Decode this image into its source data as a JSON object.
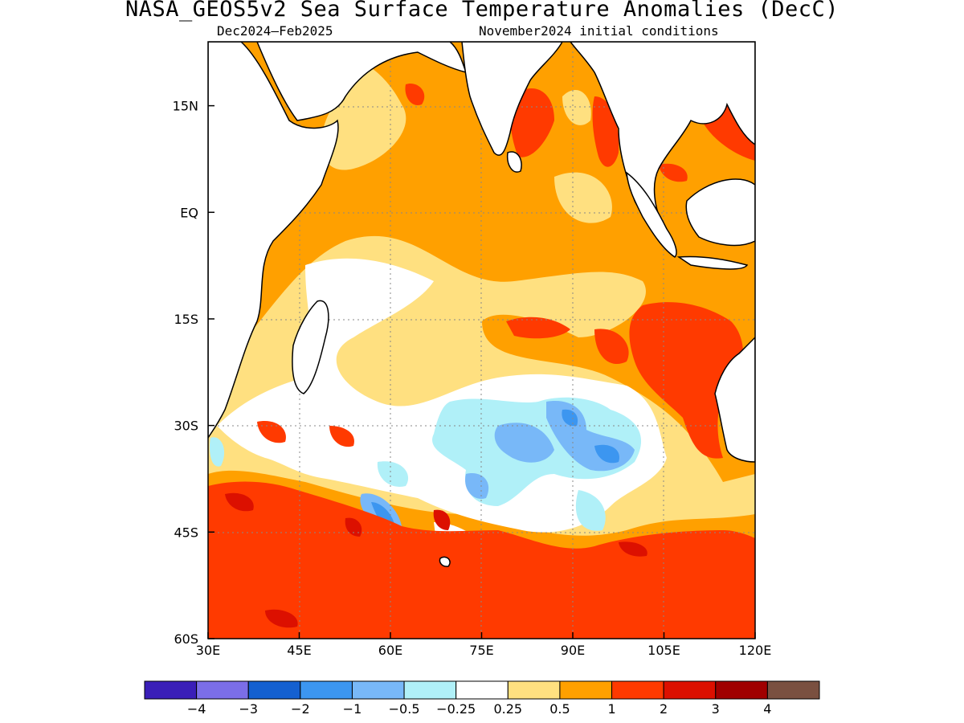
{
  "title": "NASA_GEOS5v2 Sea Surface Temperature Anomalies (DecC)",
  "subtitle_left": "Dec2024–Feb2025",
  "subtitle_right": "November2024 initial conditions",
  "map": {
    "lon_range": [
      30,
      120
    ],
    "lat_range": [
      -60,
      24
    ],
    "lat_ticks": [
      {
        "value": 15,
        "label": "15N"
      },
      {
        "value": 0,
        "label": "EQ"
      },
      {
        "value": -15,
        "label": "15S"
      },
      {
        "value": -30,
        "label": "30S"
      },
      {
        "value": -45,
        "label": "45S"
      },
      {
        "value": -60,
        "label": "60S"
      }
    ],
    "lon_ticks": [
      {
        "value": 30,
        "label": "30E"
      },
      {
        "value": 45,
        "label": "45E"
      },
      {
        "value": 60,
        "label": "60E"
      },
      {
        "value": 75,
        "label": "75E"
      },
      {
        "value": 90,
        "label": "90E"
      },
      {
        "value": 105,
        "label": "105E"
      },
      {
        "value": 120,
        "label": "120E"
      }
    ],
    "gridlines": "dotted"
  },
  "colorbar": {
    "colors": [
      "#3a1fb8",
      "#7b6ee8",
      "#1460d0",
      "#3c96f0",
      "#78b8f8",
      "#b0f0f8",
      "#ffffff",
      "#ffe080",
      "#ffa000",
      "#ff3a00",
      "#dc1000",
      "#a00000",
      "#7a5040"
    ],
    "tick_labels": [
      "−4",
      "−3",
      "−2",
      "−1",
      "−0.5",
      "−0.25",
      "0.25",
      "0.5",
      "1",
      "2",
      "3",
      "4"
    ]
  }
}
